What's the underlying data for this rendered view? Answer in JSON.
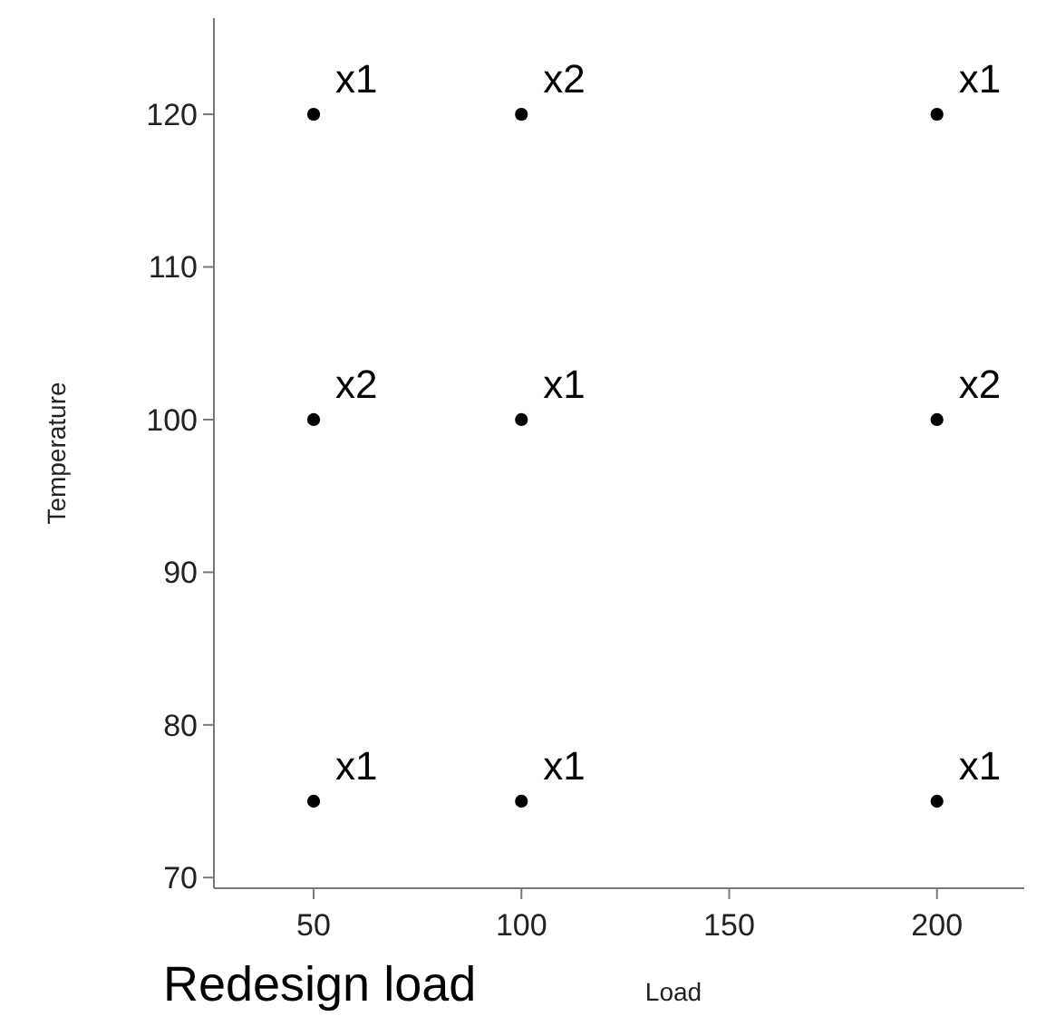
{
  "chart_data": {
    "type": "scatter",
    "xlabel": "Load",
    "ylabel": "Temperature",
    "x": [
      50,
      100,
      200,
      50,
      100,
      200,
      50,
      100,
      200
    ],
    "values": [
      120,
      120,
      120,
      100,
      100,
      100,
      75,
      75,
      75
    ],
    "color": "#000000",
    "marker": "circle",
    "grid": false,
    "xlim": [
      26,
      221
    ],
    "ylim": [
      69.3,
      126.3
    ],
    "xticks": [
      50,
      100,
      150,
      200
    ],
    "yticks": [
      70,
      80,
      90,
      100,
      110,
      120
    ],
    "annotations": [
      {
        "text": "x1",
        "x": 50,
        "y": 120
      },
      {
        "text": "x2",
        "x": 100,
        "y": 120
      },
      {
        "text": "x1",
        "x": 200,
        "y": 120
      },
      {
        "text": "x2",
        "x": 50,
        "y": 100
      },
      {
        "text": "x1",
        "x": 100,
        "y": 100
      },
      {
        "text": "x2",
        "x": 200,
        "y": 100
      },
      {
        "text": "x1",
        "x": 50,
        "y": 75
      },
      {
        "text": "x1",
        "x": 100,
        "y": 75
      },
      {
        "text": "x1",
        "x": 200,
        "y": 75
      },
      "Redesign load"
    ]
  }
}
